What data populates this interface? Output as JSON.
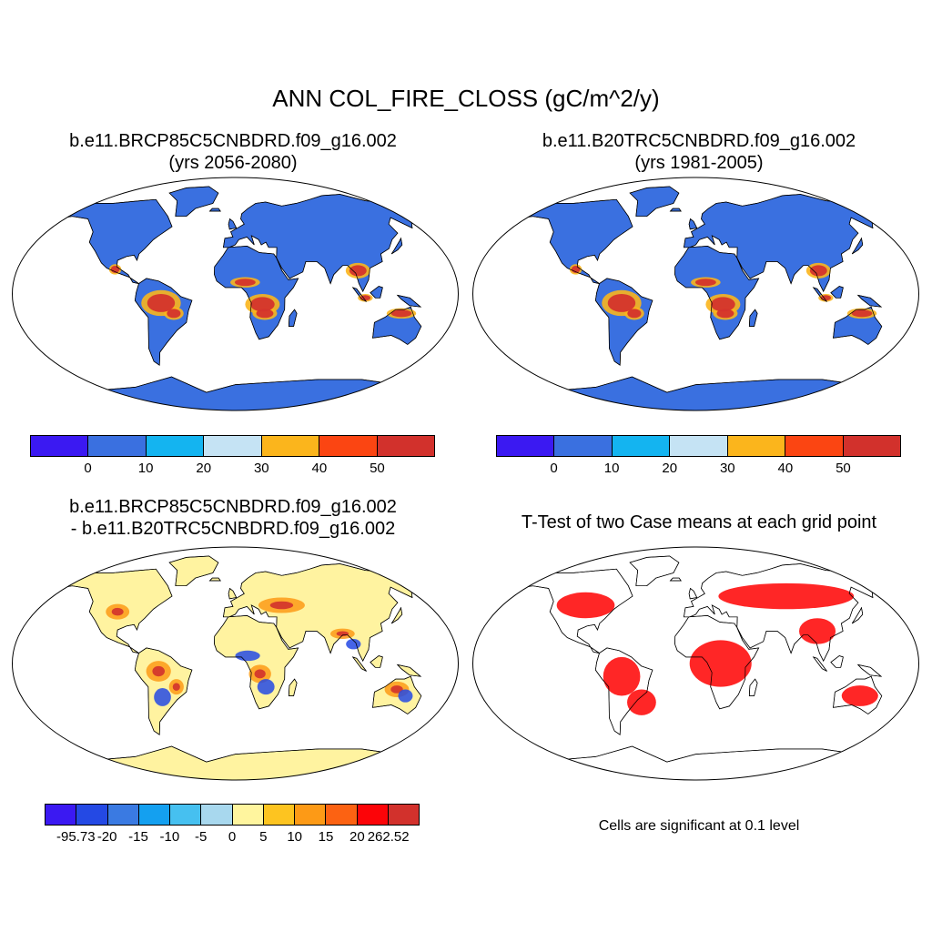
{
  "figure": {
    "main_title": "ANN COL_FIRE_CLOSS (gC/m^2/y)"
  },
  "panels": [
    {
      "id": "case",
      "title_line1": "b.e11.BRCP85C5CNBDRD.f09_g16.002",
      "title_line2": "(yrs 2056-2080)",
      "land_color": "#3a70e0",
      "fire_color": "#d4342c",
      "fire_level": "high"
    },
    {
      "id": "control",
      "title_line1": "b.e11.B20TRC5CNBDRD.f09_g16.002",
      "title_line2": "(yrs 1981-2005)",
      "land_color": "#3a70e0",
      "fire_color": "#d4342c",
      "fire_level": "high"
    },
    {
      "id": "difference",
      "title_line1": "b.e11.BRCP85C5CNBDRD.f09_g16.002",
      "title_line2": "- b.e11.B20TRC5CNBDRD.f09_g16.002",
      "land_color": "#fff3a0"
    },
    {
      "id": "ttest",
      "title_line1": "T-Test of two Case means at each grid point",
      "land_color": "#ffffff",
      "significant_color": "#ff0000"
    }
  ],
  "colorbars": {
    "absolute": {
      "colors": [
        "#3b19f2",
        "#3a70e0",
        "#14b4f0",
        "#c5e3f4",
        "#fbb51c",
        "#fb4512",
        "#d2312c"
      ],
      "labels": [
        "0",
        "10",
        "20",
        "30",
        "40",
        "50"
      ]
    },
    "difference": {
      "colors": [
        "#3b19f2",
        "#2449e4",
        "#3a7ae2",
        "#14a0f0",
        "#46c0f0",
        "#a8d8ee",
        "#fff59e",
        "#fdc420",
        "#fd9a16",
        "#fc6212",
        "#fc0408",
        "#d2312c"
      ],
      "labels": [
        "-95.73",
        "-20",
        "-15",
        "-10",
        "-5",
        "0",
        "5",
        "10",
        "15",
        "20",
        "262.52"
      ]
    }
  },
  "notes": {
    "significance": "Cells are significant at 0.1 level"
  }
}
